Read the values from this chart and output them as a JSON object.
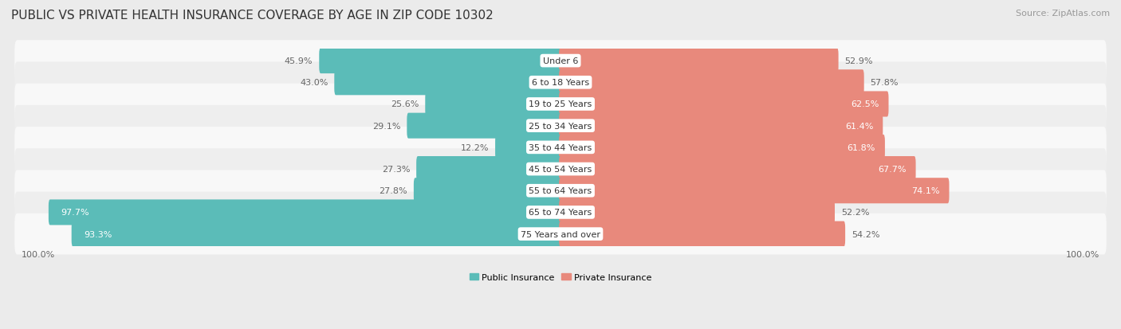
{
  "title": "PUBLIC VS PRIVATE HEALTH INSURANCE COVERAGE BY AGE IN ZIP CODE 10302",
  "source": "Source: ZipAtlas.com",
  "categories": [
    "Under 6",
    "6 to 18 Years",
    "19 to 25 Years",
    "25 to 34 Years",
    "35 to 44 Years",
    "45 to 54 Years",
    "55 to 64 Years",
    "65 to 74 Years",
    "75 Years and over"
  ],
  "public_values": [
    45.9,
    43.0,
    25.6,
    29.1,
    12.2,
    27.3,
    27.8,
    97.7,
    93.3
  ],
  "private_values": [
    52.9,
    57.8,
    62.5,
    61.4,
    61.8,
    67.7,
    74.1,
    52.2,
    54.2
  ],
  "public_color": "#5bbcb8",
  "private_color": "#e8897c",
  "background_color": "#ebebeb",
  "row_color_even": "#f8f8f8",
  "row_color_odd": "#eeeeee",
  "label_bg_color": "#ffffff",
  "title_fontsize": 11,
  "source_fontsize": 8,
  "tick_fontsize": 8,
  "label_fontsize": 8,
  "value_fontsize": 8,
  "legend_fontsize": 8,
  "xlim_left": -105,
  "xlim_right": 105
}
